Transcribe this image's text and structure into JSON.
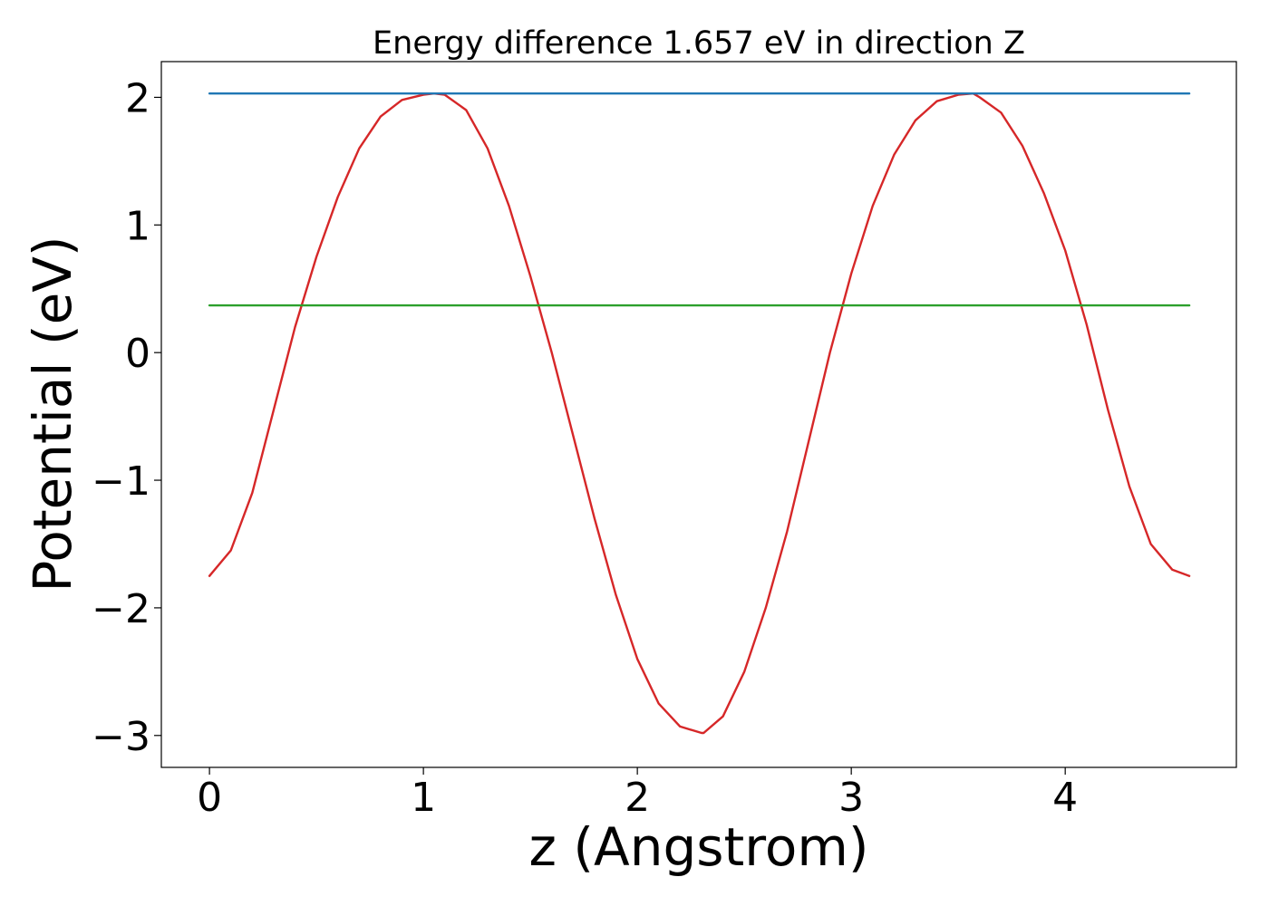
{
  "chart_data": {
    "type": "line",
    "title": "Energy difference 1.657 eV in direction Z",
    "xlabel": "z (Angstrom)",
    "ylabel": "Potential (eV)",
    "xlim": [
      -0.225,
      4.8
    ],
    "ylim": [
      -3.25,
      2.28
    ],
    "x_ticks": [
      0,
      1,
      2,
      3,
      4
    ],
    "x_tick_labels": [
      "0",
      "1",
      "2",
      "3",
      "4"
    ],
    "y_ticks": [
      2,
      1,
      0,
      -1,
      -2,
      -3
    ],
    "y_tick_labels": [
      "2",
      "1",
      "0",
      "−1",
      "−2",
      "−3"
    ],
    "grid": false,
    "series": [
      {
        "color": "#d62728",
        "x": [
          0.0,
          0.1,
          0.2,
          0.3,
          0.4,
          0.5,
          0.6,
          0.7,
          0.8,
          0.9,
          1.0,
          1.05,
          1.1,
          1.2,
          1.3,
          1.4,
          1.5,
          1.6,
          1.7,
          1.8,
          1.9,
          2.0,
          2.1,
          2.2,
          2.3,
          2.31,
          2.4,
          2.5,
          2.6,
          2.7,
          2.8,
          2.9,
          3.0,
          3.1,
          3.2,
          3.3,
          3.4,
          3.5,
          3.57,
          3.6,
          3.7,
          3.8,
          3.9,
          4.0,
          4.1,
          4.2,
          4.3,
          4.4,
          4.5,
          4.58
        ],
        "y": [
          -1.75,
          -1.55,
          -1.1,
          -0.45,
          0.2,
          0.75,
          1.22,
          1.6,
          1.85,
          1.98,
          2.02,
          2.03,
          2.02,
          1.9,
          1.6,
          1.15,
          0.6,
          0.0,
          -0.65,
          -1.3,
          -1.9,
          -2.4,
          -2.75,
          -2.93,
          -2.98,
          -2.98,
          -2.85,
          -2.5,
          -2.0,
          -1.4,
          -0.7,
          0.0,
          0.62,
          1.15,
          1.55,
          1.82,
          1.97,
          2.02,
          2.03,
          2.0,
          1.88,
          1.62,
          1.25,
          0.8,
          0.22,
          -0.45,
          -1.05,
          -1.5,
          -1.7,
          -1.75
        ]
      },
      {
        "color": "#1f77b4",
        "x": [
          0.0,
          4.58
        ],
        "y": [
          2.03,
          2.03
        ]
      },
      {
        "color": "#2ca02c",
        "x": [
          0.0,
          4.58
        ],
        "y": [
          0.37,
          0.37
        ]
      }
    ]
  }
}
